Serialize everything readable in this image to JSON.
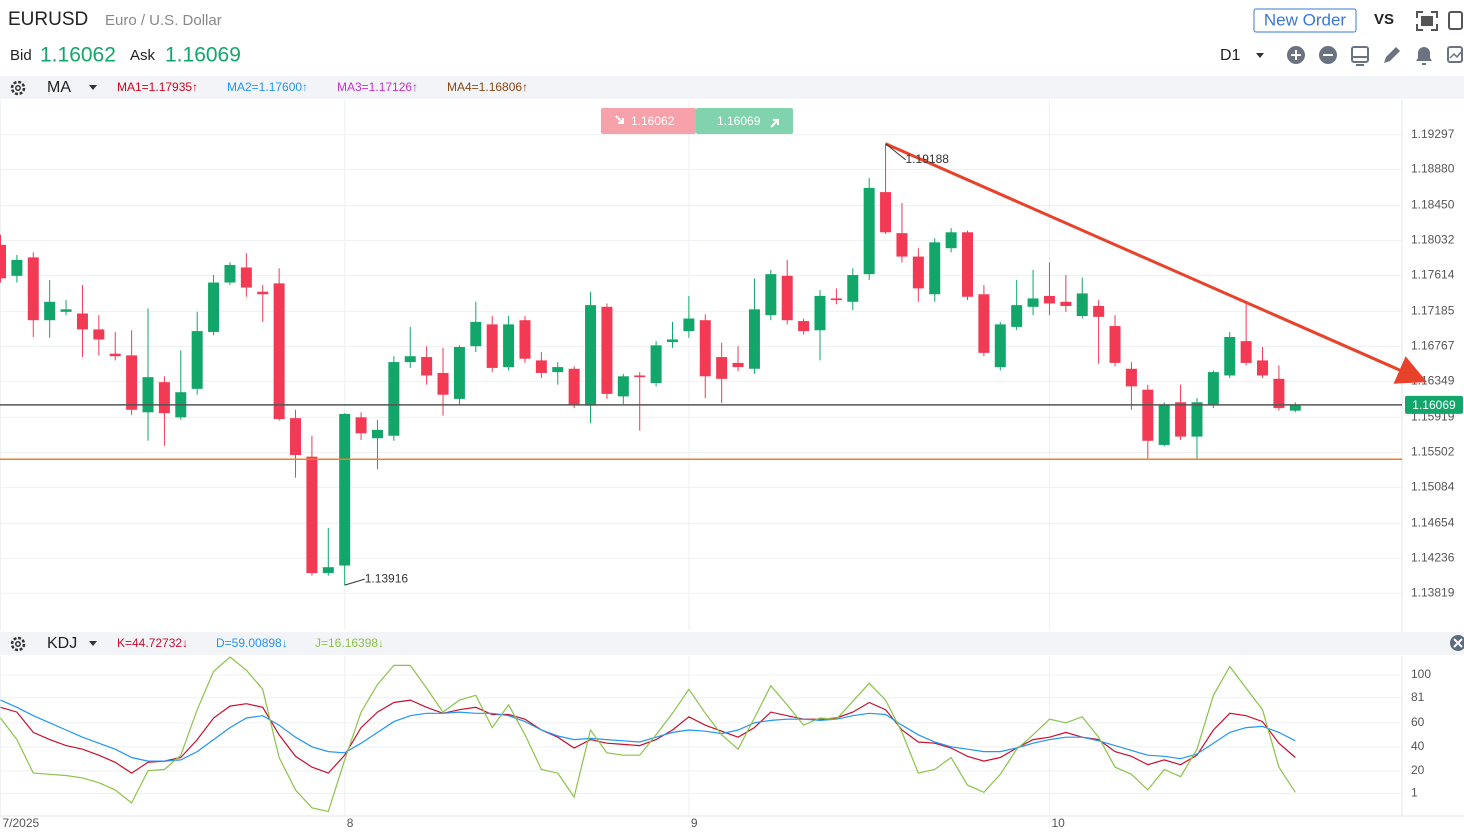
{
  "header": {
    "symbol": "EURUSD",
    "name": "Euro / U.S. Dollar",
    "button": "New Order",
    "vs": "VS",
    "bid_label": "Bid",
    "bid": "1.16062",
    "ask_label": "Ask",
    "ask": "1.16069",
    "timeframe": "D1",
    "badges": [
      "1.16062",
      "1.16069"
    ]
  },
  "chart_data": [
    {
      "type": "candlestick",
      "indicator": "MA",
      "up_color": "#12a66a",
      "down_color": "#f23a55",
      "legend": [
        {
          "name": "MA1=1.17935↑",
          "color": "#d0021b"
        },
        {
          "name": "MA2=1.17600↑",
          "color": "#2196f3"
        },
        {
          "name": "MA3=1.17126↑",
          "color": "#c62fd1"
        },
        {
          "name": "MA4=1.16806↑",
          "color": "#8b4513"
        }
      ],
      "open": [
        1.1798,
        1.1761,
        1.1783,
        1.1708,
        1.1718,
        1.1716,
        1.1697,
        1.1668,
        1.1666,
        1.1598,
        1.1634,
        1.1592,
        1.1626,
        1.1694,
        1.1753,
        1.1771,
        1.1742,
        1.1752,
        1.1591,
        1.1545,
        1.1406,
        1.1415,
        1.1592,
        1.1567,
        1.157,
        1.1658,
        1.1664,
        1.1645,
        1.1614,
        1.1677,
        1.1703,
        1.1652,
        1.1708,
        1.166,
        1.1646,
        1.165,
        1.1606,
        1.1724,
        1.1617,
        1.1642,
        1.1633,
        1.1682,
        1.1695,
        1.1708,
        1.1664,
        1.1657,
        1.165,
        1.1714,
        1.1761,
        1.1707,
        1.1696,
        1.1734,
        1.173,
        1.1763,
        1.1861,
        1.1812,
        1.1784,
        1.1739,
        1.1794,
        1.1813,
        1.1739,
        1.1652,
        1.17,
        1.1724,
        1.1737,
        1.173,
        1.1713,
        1.1725,
        1.1701,
        1.165,
        1.1625,
        1.1559,
        1.161,
        1.1569,
        1.1607,
        1.1642,
        1.1683,
        1.166,
        1.1638,
        1.16
      ],
      "high": [
        1.181,
        1.1786,
        1.1789,
        1.1756,
        1.1732,
        1.175,
        1.1714,
        1.1694,
        1.1696,
        1.1722,
        1.1641,
        1.1672,
        1.1718,
        1.1762,
        1.1777,
        1.1788,
        1.175,
        1.177,
        1.1601,
        1.157,
        1.146,
        1.1597,
        1.1598,
        1.1589,
        1.1665,
        1.17,
        1.1677,
        1.1675,
        1.1678,
        1.173,
        1.1713,
        1.1713,
        1.1713,
        1.167,
        1.1658,
        1.1653,
        1.1742,
        1.1728,
        1.1644,
        1.1646,
        1.1683,
        1.1706,
        1.1737,
        1.1715,
        1.1681,
        1.1677,
        1.1758,
        1.1768,
        1.178,
        1.171,
        1.1744,
        1.1746,
        1.177,
        1.1878,
        1.19188,
        1.1848,
        1.1794,
        1.1806,
        1.1818,
        1.1815,
        1.175,
        1.1706,
        1.1756,
        1.1768,
        1.1777,
        1.1762,
        1.1759,
        1.1732,
        1.1714,
        1.1658,
        1.1631,
        1.161,
        1.1631,
        1.1615,
        1.1648,
        1.1694,
        1.173,
        1.1676,
        1.1654,
        1.161
      ],
      "low": [
        1.1753,
        1.1753,
        1.1688,
        1.1687,
        1.1714,
        1.1664,
        1.1666,
        1.166,
        1.1595,
        1.1564,
        1.1558,
        1.1589,
        1.1619,
        1.169,
        1.175,
        1.1736,
        1.1706,
        1.1588,
        1.152,
        1.1403,
        1.1403,
        1.13916,
        1.1565,
        1.153,
        1.1564,
        1.1651,
        1.1631,
        1.1594,
        1.1607,
        1.167,
        1.1646,
        1.1648,
        1.1657,
        1.1639,
        1.1631,
        1.1603,
        1.1585,
        1.1614,
        1.1608,
        1.1576,
        1.1629,
        1.1675,
        1.1687,
        1.1615,
        1.1609,
        1.1647,
        1.1644,
        1.1708,
        1.1703,
        1.1691,
        1.166,
        1.1727,
        1.172,
        1.1756,
        1.1811,
        1.1777,
        1.173,
        1.173,
        1.1789,
        1.1732,
        1.1665,
        1.1648,
        1.1696,
        1.1714,
        1.1714,
        1.1718,
        1.171,
        1.1656,
        1.1653,
        1.1601,
        1.1543,
        1.1557,
        1.1565,
        1.1543,
        1.1603,
        1.1639,
        1.1654,
        1.1639,
        1.16,
        1.1598
      ],
      "close": [
        1.1758,
        1.178,
        1.1708,
        1.173,
        1.1721,
        1.1697,
        1.1685,
        1.1665,
        1.1601,
        1.164,
        1.1597,
        1.1622,
        1.1695,
        1.1753,
        1.1774,
        1.1747,
        1.1739,
        1.159,
        1.1547,
        1.1406,
        1.1413,
        1.1596,
        1.1573,
        1.1577,
        1.1658,
        1.1665,
        1.1642,
        1.1619,
        1.1676,
        1.1706,
        1.1651,
        1.1703,
        1.1662,
        1.1645,
        1.1652,
        1.1607,
        1.1726,
        1.162,
        1.1641,
        1.164,
        1.1678,
        1.1685,
        1.171,
        1.1641,
        1.1638,
        1.1652,
        1.1721,
        1.1763,
        1.1708,
        1.1695,
        1.1737,
        1.1732,
        1.1762,
        1.1866,
        1.1813,
        1.1784,
        1.1746,
        1.1801,
        1.1813,
        1.1736,
        1.1669,
        1.1703,
        1.1726,
        1.1734,
        1.1728,
        1.1725,
        1.174,
        1.1712,
        1.1657,
        1.1629,
        1.1564,
        1.1607,
        1.1569,
        1.161,
        1.1646,
        1.1688,
        1.1657,
        1.1642,
        1.1603,
        1.16069
      ],
      "ylim": [
        1.1338,
        1.1971
      ],
      "yticks": [
        1.19297,
        {
          "value": 1.1888,
          "label": "1.18880"
        },
        {
          "value": 1.1845,
          "label": "1.18450"
        },
        1.18032,
        1.17614,
        1.17185,
        1.16767,
        1.16349,
        1.15919,
        1.15502,
        1.15084,
        1.14654,
        1.14236,
        1.13819
      ],
      "hlines": [
        {
          "value": 1.16069,
          "color": "#555555"
        },
        {
          "value": 1.1542,
          "color": "#f57c20"
        }
      ],
      "high_label": 1.19188,
      "low_label": 1.13916,
      "trendline": {
        "color": "#e8432a",
        "from": {
          "index": 54,
          "value": 1.19188
        },
        "to": {
          "index": 86.7,
          "value": 1.1637
        }
      },
      "grid": true
    },
    {
      "type": "line",
      "indicator": "KDJ",
      "categories": [
        "7/2025",
        null,
        null,
        null,
        null,
        null,
        null,
        null,
        null,
        null,
        null,
        null,
        null,
        null,
        null,
        null,
        null,
        null,
        null,
        null,
        null,
        "8",
        null,
        null,
        null,
        null,
        null,
        null,
        null,
        null,
        null,
        null,
        null,
        null,
        null,
        null,
        null,
        null,
        null,
        null,
        null,
        null,
        "9",
        null,
        null,
        null,
        null,
        null,
        null,
        null,
        null,
        null,
        null,
        null,
        null,
        null,
        null,
        null,
        null,
        null,
        null,
        null,
        null,
        null,
        "10",
        null,
        null,
        null,
        null,
        null,
        null,
        null,
        null,
        null,
        null,
        null,
        null,
        null,
        null,
        null
      ],
      "series": [
        {
          "name": "K=44.72732↓",
          "color": "#c8102e",
          "values": [
            73,
            69,
            52,
            46,
            41,
            38,
            33,
            27,
            18,
            27,
            28,
            31,
            46,
            64,
            74,
            76,
            73,
            50,
            32,
            23,
            18,
            33,
            56,
            69,
            77,
            79,
            73,
            68,
            71,
            73,
            67,
            67,
            63,
            54,
            48,
            39,
            46,
            43,
            42,
            41,
            46,
            54,
            65,
            58,
            53,
            48,
            56,
            69,
            66,
            63,
            63,
            64,
            69,
            77,
            71,
            54,
            44,
            43,
            39,
            32,
            28,
            31,
            39,
            46,
            48,
            52,
            48,
            46,
            36,
            32,
            25,
            29,
            25,
            33,
            54,
            68,
            66,
            61,
            43,
            31
          ]
        },
        {
          "name": "D=59.00898↓",
          "color": "#2196f3",
          "values": [
            79,
            73,
            66,
            60,
            54,
            48,
            43,
            38,
            31,
            28,
            28,
            29,
            36,
            46,
            56,
            64,
            66,
            58,
            48,
            40,
            36,
            35,
            43,
            52,
            61,
            66,
            68,
            68,
            69,
            68,
            68,
            66,
            61,
            54,
            49,
            46,
            47,
            46,
            45,
            44,
            48,
            52,
            54,
            53,
            51,
            54,
            60,
            62,
            63,
            63,
            62,
            63,
            66,
            68,
            67,
            58,
            50,
            44,
            40,
            38,
            36,
            36,
            39,
            43,
            46,
            48,
            48,
            45,
            41,
            37,
            33,
            32,
            30,
            34,
            43,
            52,
            56,
            57,
            52,
            45
          ]
        },
        {
          "name": "J=16.16398↓",
          "color": "#8bc34a",
          "values": [
            64,
            46,
            18,
            17,
            16,
            14,
            10,
            4,
            -7,
            20,
            21,
            33,
            71,
            103,
            115,
            104,
            88,
            31,
            4,
            -11,
            -14,
            29,
            69,
            92,
            108,
            108,
            89,
            69,
            79,
            83,
            56,
            75,
            50,
            21,
            18,
            -2,
            54,
            35,
            33,
            33,
            50,
            68,
            88,
            68,
            50,
            38,
            64,
            91,
            75,
            58,
            64,
            63,
            78,
            93,
            79,
            52,
            18,
            21,
            31,
            8,
            2,
            17,
            38,
            50,
            63,
            60,
            65,
            48,
            23,
            17,
            4,
            21,
            15,
            38,
            83,
            107,
            89,
            71,
            23,
            2
          ]
        }
      ],
      "ylim": [
        -17,
        115
      ],
      "yticks": [
        1,
        20,
        40,
        60,
        81,
        100
      ],
      "grid": true
    }
  ]
}
